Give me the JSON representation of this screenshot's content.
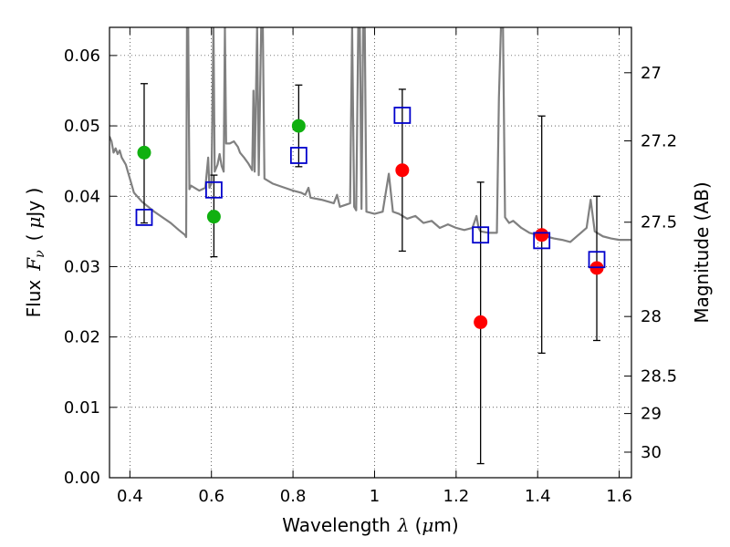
{
  "chart_data": {
    "type": "scatter",
    "title": "",
    "xlabel_text": "Wavelength",
    "xlabel_symbol": "λ",
    "xlabel_unit_open": "(",
    "xlabel_unit_mu": "μ",
    "xlabel_unit_rest": "m)",
    "ylabel_text": "Flux",
    "ylabel_symbol": "F",
    "ylabel_sub": "ν",
    "ylabel_unit_open": "(",
    "ylabel_unit_mu": "μ",
    "ylabel_unit_rest": "Jy )",
    "y2label": "Magnitude (AB)",
    "xlim": [
      0.35,
      1.63
    ],
    "ylim": [
      0.0,
      0.064
    ],
    "grid": true,
    "x_ticks": [
      0.4,
      0.6,
      0.8,
      1.0,
      1.2,
      1.4,
      1.6
    ],
    "x_tick_labels": [
      "0.4",
      "0.6",
      "0.8",
      "1",
      "1.2",
      "1.4",
      "1.6"
    ],
    "y_ticks": [
      0.0,
      0.01,
      0.02,
      0.03,
      0.04,
      0.05,
      0.06
    ],
    "y_tick_labels": [
      "0.00",
      "0.01",
      "0.02",
      "0.03",
      "0.04",
      "0.05",
      "0.06"
    ],
    "mag_ticks": [
      27,
      27.2,
      27.5,
      28,
      28.5,
      29,
      30
    ],
    "mag_tick_labels": [
      "27",
      "27.2",
      "27.5",
      "28",
      "28.5",
      "29",
      "30"
    ],
    "colors": {
      "model": "#808080",
      "green": "#10b010",
      "red": "#ff0000",
      "square": "#0000cc",
      "errorbar": "#000000"
    },
    "model_spectrum": [
      [
        0.35,
        0.0485
      ],
      [
        0.355,
        0.0478
      ],
      [
        0.36,
        0.0462
      ],
      [
        0.365,
        0.0468
      ],
      [
        0.37,
        0.046
      ],
      [
        0.375,
        0.0465
      ],
      [
        0.38,
        0.0455
      ],
      [
        0.39,
        0.0445
      ],
      [
        0.4,
        0.0425
      ],
      [
        0.405,
        0.0415
      ],
      [
        0.41,
        0.0405
      ],
      [
        0.43,
        0.0392
      ],
      [
        0.46,
        0.0378
      ],
      [
        0.5,
        0.0362
      ],
      [
        0.52,
        0.0352
      ],
      [
        0.535,
        0.0345
      ],
      [
        0.538,
        0.0342
      ],
      [
        0.54,
        0.064
      ],
      [
        0.543,
        0.064
      ],
      [
        0.546,
        0.041
      ],
      [
        0.55,
        0.0415
      ],
      [
        0.57,
        0.0408
      ],
      [
        0.585,
        0.0412
      ],
      [
        0.592,
        0.0455
      ],
      [
        0.595,
        0.0412
      ],
      [
        0.6,
        0.0418
      ],
      [
        0.605,
        0.064
      ],
      [
        0.608,
        0.0435
      ],
      [
        0.615,
        0.0445
      ],
      [
        0.62,
        0.046
      ],
      [
        0.625,
        0.0443
      ],
      [
        0.63,
        0.0435
      ],
      [
        0.633,
        0.064
      ],
      [
        0.636,
        0.0475
      ],
      [
        0.645,
        0.0475
      ],
      [
        0.655,
        0.0478
      ],
      [
        0.665,
        0.047
      ],
      [
        0.67,
        0.0462
      ],
      [
        0.68,
        0.0455
      ],
      [
        0.69,
        0.0447
      ],
      [
        0.7,
        0.0437
      ],
      [
        0.703,
        0.055
      ],
      [
        0.706,
        0.0435
      ],
      [
        0.712,
        0.064
      ],
      [
        0.716,
        0.043
      ],
      [
        0.722,
        0.064
      ],
      [
        0.726,
        0.064
      ],
      [
        0.73,
        0.0425
      ],
      [
        0.75,
        0.0418
      ],
      [
        0.78,
        0.0412
      ],
      [
        0.8,
        0.0408
      ],
      [
        0.82,
        0.0405
      ],
      [
        0.83,
        0.0402
      ],
      [
        0.838,
        0.0412
      ],
      [
        0.843,
        0.0398
      ],
      [
        0.87,
        0.0395
      ],
      [
        0.9,
        0.039
      ],
      [
        0.908,
        0.0402
      ],
      [
        0.915,
        0.0385
      ],
      [
        0.94,
        0.039
      ],
      [
        0.945,
        0.064
      ],
      [
        0.95,
        0.0385
      ],
      [
        0.955,
        0.038
      ],
      [
        0.96,
        0.064
      ],
      [
        0.964,
        0.064
      ],
      [
        0.968,
        0.0382
      ],
      [
        0.972,
        0.064
      ],
      [
        0.976,
        0.064
      ],
      [
        0.98,
        0.0378
      ],
      [
        1.0,
        0.0375
      ],
      [
        1.02,
        0.0378
      ],
      [
        1.035,
        0.0432
      ],
      [
        1.045,
        0.0378
      ],
      [
        1.06,
        0.0375
      ],
      [
        1.08,
        0.0368
      ],
      [
        1.1,
        0.0372
      ],
      [
        1.12,
        0.0362
      ],
      [
        1.14,
        0.0365
      ],
      [
        1.16,
        0.0355
      ],
      [
        1.18,
        0.036
      ],
      [
        1.2,
        0.0355
      ],
      [
        1.22,
        0.0352
      ],
      [
        1.24,
        0.0355
      ],
      [
        1.25,
        0.0372
      ],
      [
        1.255,
        0.0355
      ],
      [
        1.26,
        0.035
      ],
      [
        1.28,
        0.0348
      ],
      [
        1.3,
        0.0348
      ],
      [
        1.305,
        0.054
      ],
      [
        1.31,
        0.064
      ],
      [
        1.315,
        0.064
      ],
      [
        1.32,
        0.037
      ],
      [
        1.33,
        0.0362
      ],
      [
        1.34,
        0.0365
      ],
      [
        1.36,
        0.0355
      ],
      [
        1.38,
        0.0348
      ],
      [
        1.4,
        0.0345
      ],
      [
        1.42,
        0.0343
      ],
      [
        1.44,
        0.034
      ],
      [
        1.46,
        0.0338
      ],
      [
        1.48,
        0.0335
      ],
      [
        1.5,
        0.0345
      ],
      [
        1.52,
        0.0355
      ],
      [
        1.53,
        0.0395
      ],
      [
        1.54,
        0.035
      ],
      [
        1.56,
        0.0343
      ],
      [
        1.58,
        0.034
      ],
      [
        1.6,
        0.0338
      ],
      [
        1.63,
        0.0338
      ]
    ],
    "series": [
      {
        "marker": "circle",
        "color": "green",
        "points": [
          {
            "x": 0.435,
            "y": 0.0462
          },
          {
            "x": 0.606,
            "y": 0.0371
          },
          {
            "x": 0.814,
            "y": 0.05
          }
        ]
      },
      {
        "marker": "circle",
        "color": "red",
        "points": [
          {
            "x": 1.068,
            "y": 0.0437
          },
          {
            "x": 1.26,
            "y": 0.0221
          },
          {
            "x": 1.41,
            "y": 0.0345
          },
          {
            "x": 1.545,
            "y": 0.0298
          }
        ]
      },
      {
        "marker": "open-square",
        "color": "square",
        "points": [
          {
            "x": 0.435,
            "y": 0.037
          },
          {
            "x": 0.606,
            "y": 0.0409
          },
          {
            "x": 0.814,
            "y": 0.0458
          },
          {
            "x": 1.068,
            "y": 0.0515
          },
          {
            "x": 1.26,
            "y": 0.0345
          },
          {
            "x": 1.41,
            "y": 0.0337
          },
          {
            "x": 1.545,
            "y": 0.031
          }
        ]
      }
    ],
    "error_bars": [
      {
        "x": 0.435,
        "low": 0.0362,
        "high": 0.056
      },
      {
        "x": 0.606,
        "low": 0.0314,
        "high": 0.043
      },
      {
        "x": 0.814,
        "low": 0.0442,
        "high": 0.0558
      },
      {
        "x": 1.068,
        "low": 0.0322,
        "high": 0.0552
      },
      {
        "x": 1.26,
        "low": 0.002,
        "high": 0.042
      },
      {
        "x": 1.41,
        "low": 0.0177,
        "high": 0.0514
      },
      {
        "x": 1.545,
        "low": 0.0195,
        "high": 0.04
      }
    ]
  }
}
